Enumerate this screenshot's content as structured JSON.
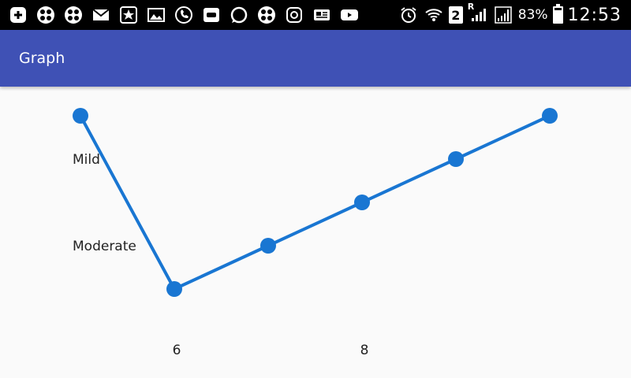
{
  "status_bar": {
    "left_icons": [
      "add-box-icon",
      "clover-app-icon",
      "clover-app-icon-2",
      "mail-icon",
      "star-app-icon",
      "gallery-icon",
      "phone-app-icon",
      "car-app-icon",
      "whatsapp-icon",
      "clover-app-icon-3",
      "instagram-icon",
      "news-icon",
      "youtube-icon"
    ],
    "right_icons": [
      "alarm-icon",
      "wifi-icon"
    ],
    "sim_label": "2",
    "roaming_label": "R",
    "battery_text": "83%",
    "battery_level": 0.83,
    "time": "12:53"
  },
  "app_bar": {
    "title": "Graph",
    "color": "#3f51b5"
  },
  "chart_data": {
    "type": "line",
    "title": "",
    "xlabel": "",
    "ylabel": "",
    "x_ticks": [
      "6",
      "8"
    ],
    "y_ticks": [
      "Mild",
      "Moderate"
    ],
    "xlim": [
      4.9,
      10.2
    ],
    "ylim": [
      0,
      4
    ],
    "x": [
      5,
      6,
      7,
      8,
      9,
      10
    ],
    "values": [
      4,
      0,
      1,
      2,
      3,
      4
    ],
    "color": "#1976d2"
  }
}
